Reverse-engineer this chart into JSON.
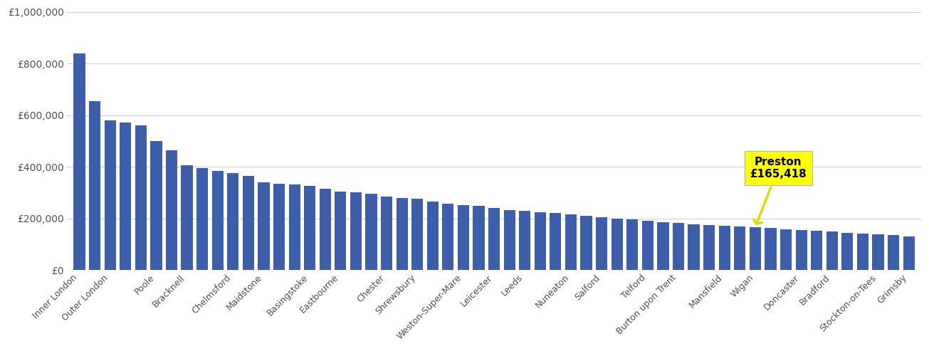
{
  "bar_color": "#3d5eab",
  "highlight_color": "#ffff00",
  "annotation_city": "Preston",
  "annotation_value": "£165,418",
  "ylim": [
    0,
    1000000
  ],
  "yticks": [
    0,
    200000,
    400000,
    600000,
    800000,
    1000000
  ],
  "ytick_labels": [
    "£0",
    "£200,000",
    "£400,000",
    "£600,000",
    "£800,000",
    "£1,000,000"
  ],
  "background_color": "#ffffff",
  "grid_color": "#d0d0d0",
  "all_values": [
    840000,
    655000,
    580000,
    570000,
    560000,
    500000,
    465000,
    405000,
    395000,
    385000,
    375000,
    365000,
    340000,
    335000,
    330000,
    325000,
    315000,
    305000,
    300000,
    295000,
    285000,
    280000,
    275000,
    265000,
    257000,
    252000,
    248000,
    240000,
    232000,
    228000,
    225000,
    220000,
    215000,
    210000,
    205000,
    200000,
    195000,
    190000,
    185000,
    182000,
    178000,
    175000,
    172000,
    168000,
    165418,
    162000,
    158000,
    155000,
    152000,
    148000,
    145000,
    142000,
    138000,
    135000,
    130000
  ],
  "tick_label_indices": [
    0,
    1,
    2,
    3,
    4,
    5,
    6,
    7,
    8,
    9,
    10,
    11,
    12,
    13,
    14,
    15,
    16,
    17,
    18,
    19,
    20,
    21,
    22
  ],
  "tick_labels": [
    "Inner London",
    "Outer London",
    "Poole",
    "Bracknell",
    "Chelmsford",
    "Maidstone",
    "Basingstoke",
    "Eastbourne",
    "Chester",
    "Shrewsbury",
    "Weston-Super-Mare",
    "Leicester",
    "Leeds",
    "Nuneaton",
    "Salford",
    "Telford",
    "Burton upon Trent",
    "Mansfield",
    "Wigan",
    "Doncaster",
    "Bradford",
    "Stockton-on-Tees",
    "Grimsby"
  ],
  "annotation_bar_index": 44,
  "annotation_bar_value": 165418
}
